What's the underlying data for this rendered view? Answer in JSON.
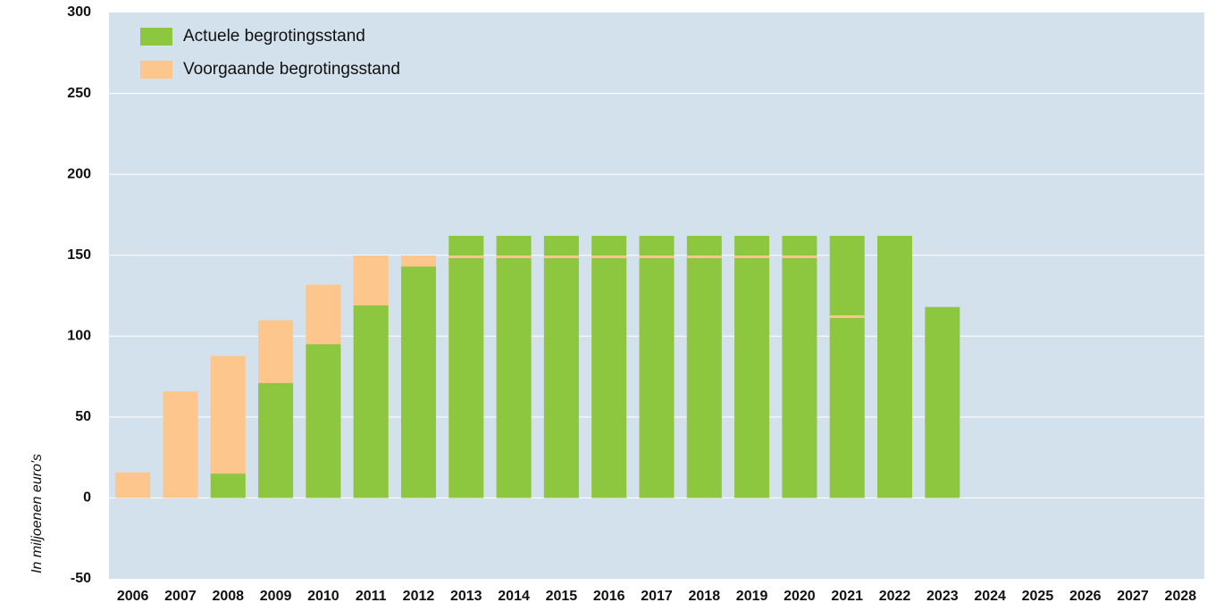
{
  "chart_data": {
    "type": "bar",
    "y_label": "In miljoenen euro's",
    "categories": [
      "2006",
      "2007",
      "2008",
      "2009",
      "2010",
      "2011",
      "2012",
      "2013",
      "2014",
      "2015",
      "2016",
      "2017",
      "2018",
      "2019",
      "2020",
      "2021",
      "2022",
      "2023",
      "2024",
      "2025",
      "2026",
      "2027",
      "2028"
    ],
    "series": [
      {
        "name": "Actuele begrotingsstand",
        "color": "#8dc63f",
        "values": [
          null,
          null,
          15,
          71,
          95,
          119,
          143,
          162,
          162,
          162,
          162,
          162,
          162,
          162,
          162,
          162,
          162,
          118,
          null,
          null,
          null,
          null,
          null
        ]
      },
      {
        "name": "Voorgaande begrotingsstand",
        "color": "#fdc68c",
        "values": [
          15,
          65,
          87,
          109,
          131,
          149,
          149,
          149,
          149,
          149,
          149,
          149,
          149,
          149,
          149,
          112,
          null,
          null,
          null,
          null,
          null,
          null,
          null
        ]
      }
    ],
    "ylim": [
      -50,
      300
    ],
    "yticks": [
      -50,
      0,
      50,
      100,
      150,
      200,
      250,
      300
    ],
    "grid": true,
    "legend": "upper left",
    "background": "#d3e1ec"
  }
}
